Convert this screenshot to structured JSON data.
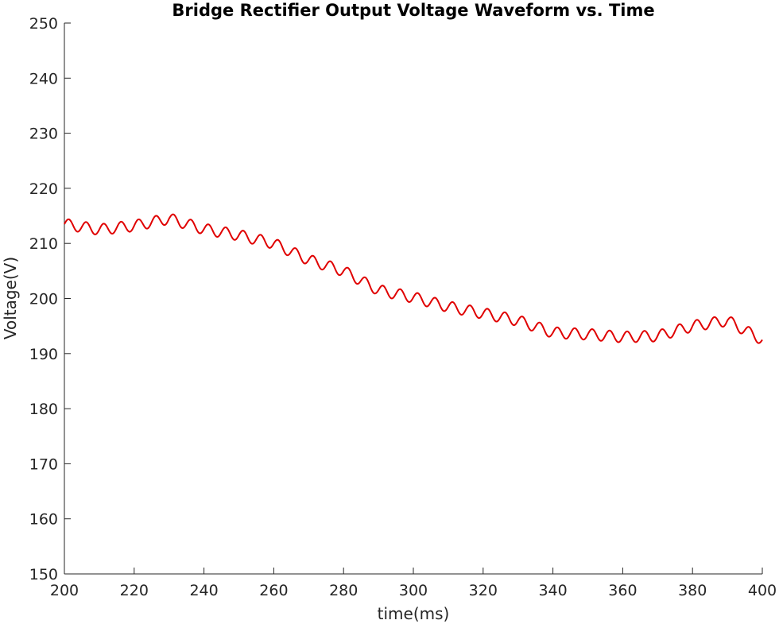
{
  "chart_data": {
    "type": "line",
    "title": "Bridge Rectifier Output Voltage Waveform vs. Time",
    "xlabel": "time(ms)",
    "ylabel": "Voltage(V)",
    "xlim": [
      200,
      400
    ],
    "ylim": [
      150,
      250
    ],
    "xticks": [
      200,
      220,
      240,
      260,
      280,
      300,
      320,
      340,
      360,
      380,
      400
    ],
    "yticks": [
      150,
      160,
      170,
      180,
      190,
      200,
      210,
      220,
      230,
      240,
      250
    ],
    "grid": false,
    "legend": "none",
    "series": [
      {
        "color": "#e00000",
        "ripple_period_ms": 5,
        "ripple_amplitude_v": 1,
        "x": [
          200,
          210,
          220,
          230,
          240,
          250,
          260,
          270,
          280,
          290,
          300,
          310,
          320,
          330,
          340,
          350,
          360,
          370,
          380,
          390,
          400
        ],
        "y": [
          213.5,
          212.5,
          213.2,
          214.5,
          212.6,
          211.5,
          210.0,
          207.0,
          205.0,
          201.5,
          200.2,
          198.5,
          197.3,
          196.0,
          193.8,
          193.5,
          193.0,
          193.2,
          195.0,
          196.0,
          192.5
        ]
      }
    ]
  }
}
